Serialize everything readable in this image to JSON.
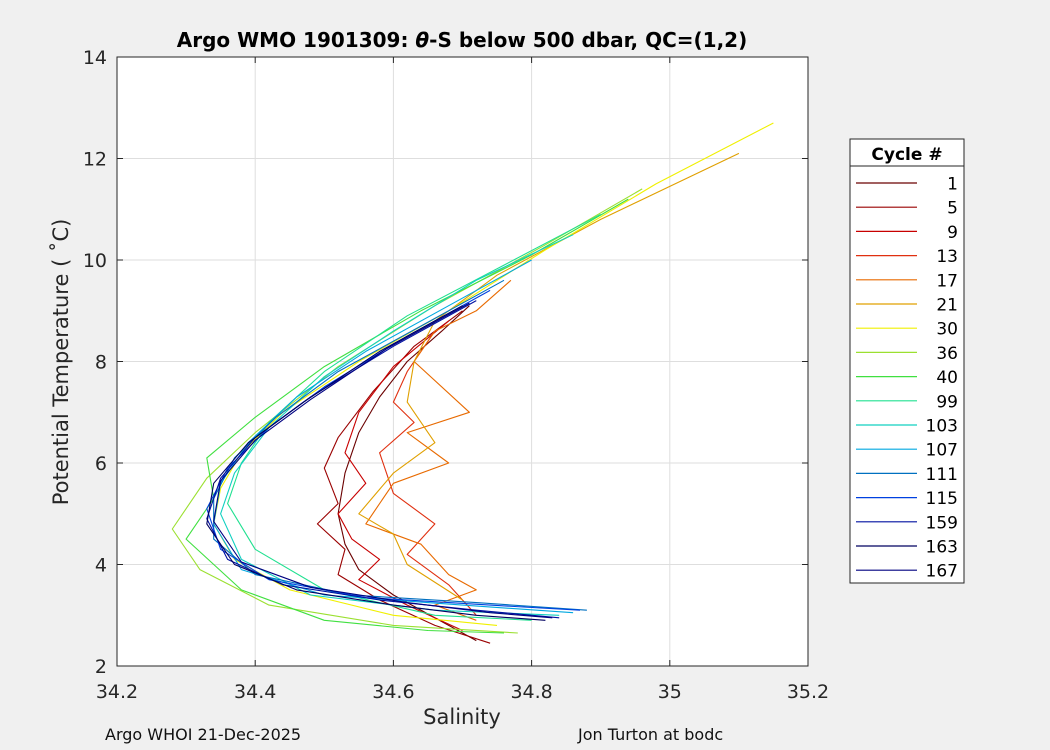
{
  "footer": {
    "left": "Argo WHOI 21-Dec-2025",
    "right": "Jon Turton at bodc"
  },
  "chart_data": {
    "type": "line",
    "title_prefix": "Argo WMO 1901309: ",
    "title_symbol": "θ",
    "title_suffix": "-S below 500 dbar,  QC=(1,2)",
    "xlabel": "Salinity",
    "ylabel": "Potential Temperature ( ˚C)",
    "xlim": [
      34.2,
      35.2
    ],
    "ylim": [
      2,
      14
    ],
    "xticks": [
      "34.2",
      "34.4",
      "34.6",
      "34.8",
      "35",
      "35.2"
    ],
    "yticks": [
      "2",
      "4",
      "6",
      "8",
      "10",
      "12",
      "14"
    ],
    "grid": true,
    "legend": {
      "title": "Cycle #",
      "placement": "outside-right",
      "entries": [
        {
          "label": "1",
          "color": "#6b0000"
        },
        {
          "label": "5",
          "color": "#9a0000"
        },
        {
          "label": "9",
          "color": "#c80000"
        },
        {
          "label": "13",
          "color": "#e03010"
        },
        {
          "label": "17",
          "color": "#e86a00"
        },
        {
          "label": "21",
          "color": "#e0a000"
        },
        {
          "label": "30",
          "color": "#f0f000"
        },
        {
          "label": "36",
          "color": "#9be030"
        },
        {
          "label": "40",
          "color": "#40e040"
        },
        {
          "label": "99",
          "color": "#20e090"
        },
        {
          "label": "103",
          "color": "#10d0c0"
        },
        {
          "label": "107",
          "color": "#00a8e0"
        },
        {
          "label": "111",
          "color": "#0070c0"
        },
        {
          "label": "115",
          "color": "#0040e0"
        },
        {
          "label": "159",
          "color": "#0010a0"
        },
        {
          "label": "163",
          "color": "#000060"
        },
        {
          "label": "167",
          "color": "#000080"
        }
      ]
    },
    "series": [
      {
        "color": "#6b0000",
        "x": [
          34.71,
          34.67,
          34.62,
          34.58,
          34.55,
          34.53,
          34.52,
          34.53,
          34.55,
          34.6,
          34.68,
          34.72
        ],
        "y": [
          9.1,
          8.6,
          8.0,
          7.3,
          6.6,
          5.8,
          5.0,
          4.4,
          3.9,
          3.4,
          2.8,
          2.5
        ]
      },
      {
        "color": "#9a0000",
        "x": [
          34.7,
          34.63,
          34.57,
          34.52,
          34.5,
          34.52,
          34.49,
          34.53,
          34.52,
          34.58,
          34.66,
          34.74
        ],
        "y": [
          9.0,
          8.3,
          7.4,
          6.5,
          5.9,
          5.2,
          4.8,
          4.3,
          3.8,
          3.3,
          2.8,
          2.45
        ]
      },
      {
        "color": "#c80000",
        "x": [
          34.68,
          34.6,
          34.55,
          34.53,
          34.56,
          34.52,
          34.54,
          34.58,
          34.55,
          34.62,
          34.7
        ],
        "y": [
          8.8,
          7.9,
          7.0,
          6.2,
          5.6,
          5.0,
          4.5,
          4.1,
          3.7,
          3.2,
          2.7
        ]
      },
      {
        "color": "#e03010",
        "x": [
          34.66,
          34.62,
          34.6,
          34.63,
          34.58,
          34.6,
          34.66,
          34.62,
          34.68,
          34.72
        ],
        "y": [
          8.6,
          7.8,
          7.2,
          6.8,
          6.2,
          5.4,
          4.8,
          4.2,
          3.6,
          3.0
        ]
      },
      {
        "color": "#e86a00",
        "x": [
          34.77,
          34.72,
          34.66,
          34.63,
          34.71,
          34.62,
          34.68,
          34.6,
          34.56,
          34.64,
          34.68,
          34.72,
          34.66,
          34.72
        ],
        "y": [
          9.6,
          9.0,
          8.6,
          8.0,
          7.0,
          6.6,
          6.0,
          5.6,
          4.8,
          4.4,
          3.8,
          3.5,
          3.2,
          2.9
        ]
      },
      {
        "color": "#e0a000",
        "x": [
          35.1,
          34.9,
          34.75,
          34.66,
          34.63,
          34.62,
          34.66,
          34.6,
          34.55,
          34.6,
          34.62,
          34.7
        ],
        "y": [
          12.1,
          10.8,
          9.7,
          8.8,
          8.0,
          7.2,
          6.4,
          5.8,
          5.0,
          4.6,
          4.0,
          3.3
        ]
      },
      {
        "color": "#f0f000",
        "x": [
          35.15,
          34.98,
          34.82,
          34.68,
          34.55,
          34.44,
          34.38,
          34.35,
          34.34,
          34.37,
          34.45,
          34.6,
          34.75
        ],
        "y": [
          12.7,
          11.5,
          10.2,
          9.0,
          8.0,
          7.0,
          6.2,
          5.5,
          4.8,
          4.1,
          3.5,
          3.0,
          2.8
        ]
      },
      {
        "color": "#9be030",
        "x": [
          34.96,
          34.82,
          34.66,
          34.52,
          34.4,
          34.33,
          34.28,
          34.32,
          34.42,
          34.6,
          34.78
        ],
        "y": [
          11.4,
          10.3,
          9.1,
          7.9,
          6.6,
          5.7,
          4.7,
          3.9,
          3.2,
          2.8,
          2.65
        ]
      },
      {
        "color": "#40e040",
        "x": [
          34.94,
          34.8,
          34.64,
          34.5,
          34.4,
          34.33,
          34.34,
          34.3,
          34.38,
          34.5,
          34.65,
          34.76
        ],
        "y": [
          11.2,
          10.1,
          9.0,
          7.9,
          6.9,
          6.1,
          5.3,
          4.5,
          3.5,
          2.9,
          2.7,
          2.65
        ]
      },
      {
        "color": "#20e090",
        "x": [
          34.9,
          34.76,
          34.62,
          34.5,
          34.42,
          34.38,
          34.36,
          34.4,
          34.5,
          34.66,
          34.8
        ],
        "y": [
          10.9,
          9.9,
          8.9,
          7.8,
          6.8,
          6.0,
          5.2,
          4.3,
          3.5,
          3.0,
          2.9
        ]
      },
      {
        "color": "#10d0c0",
        "x": [
          34.86,
          34.72,
          34.6,
          34.5,
          34.42,
          34.37,
          34.35,
          34.38,
          34.48,
          34.66,
          34.84
        ],
        "y": [
          10.5,
          9.6,
          8.6,
          7.7,
          6.7,
          5.8,
          5.0,
          4.1,
          3.4,
          3.1,
          3.0
        ]
      },
      {
        "color": "#00a8e0",
        "x": [
          34.8,
          34.68,
          34.56,
          34.46,
          34.39,
          34.35,
          34.34,
          34.38,
          34.5,
          34.7,
          34.86
        ],
        "y": [
          10.0,
          9.1,
          8.2,
          7.3,
          6.4,
          5.6,
          4.8,
          3.9,
          3.4,
          3.2,
          3.05
        ]
      },
      {
        "color": "#0070c0",
        "x": [
          34.76,
          34.64,
          34.52,
          34.43,
          34.37,
          34.34,
          34.34,
          34.4,
          34.54,
          34.72,
          34.88
        ],
        "y": [
          9.6,
          8.7,
          7.8,
          6.9,
          6.1,
          5.3,
          4.5,
          3.8,
          3.4,
          3.25,
          3.1
        ]
      },
      {
        "color": "#0040e0",
        "x": [
          34.74,
          34.62,
          34.5,
          34.42,
          34.36,
          34.33,
          34.35,
          34.42,
          34.56,
          34.74,
          34.87
        ],
        "y": [
          9.4,
          8.5,
          7.5,
          6.7,
          5.9,
          5.1,
          4.3,
          3.7,
          3.35,
          3.2,
          3.1
        ]
      },
      {
        "color": "#0010a0",
        "x": [
          34.72,
          34.6,
          34.48,
          34.4,
          34.35,
          34.33,
          34.36,
          34.44,
          34.58,
          34.72,
          34.84
        ],
        "y": [
          9.2,
          8.3,
          7.3,
          6.5,
          5.7,
          4.9,
          4.1,
          3.6,
          3.3,
          3.1,
          2.95
        ]
      },
      {
        "color": "#000060",
        "x": [
          34.7,
          34.58,
          34.47,
          34.39,
          34.34,
          34.33,
          34.37,
          34.46,
          34.6,
          34.72,
          34.82
        ],
        "y": [
          9.1,
          8.2,
          7.2,
          6.4,
          5.6,
          4.8,
          4.0,
          3.5,
          3.2,
          3.0,
          2.9
        ]
      },
      {
        "color": "#000080",
        "x": [
          34.71,
          34.59,
          34.48,
          34.4,
          34.35,
          34.34,
          34.38,
          34.48,
          34.62,
          34.74,
          34.83
        ],
        "y": [
          9.15,
          8.25,
          7.25,
          6.45,
          5.65,
          4.85,
          4.05,
          3.55,
          3.25,
          3.05,
          2.95
        ]
      }
    ]
  }
}
